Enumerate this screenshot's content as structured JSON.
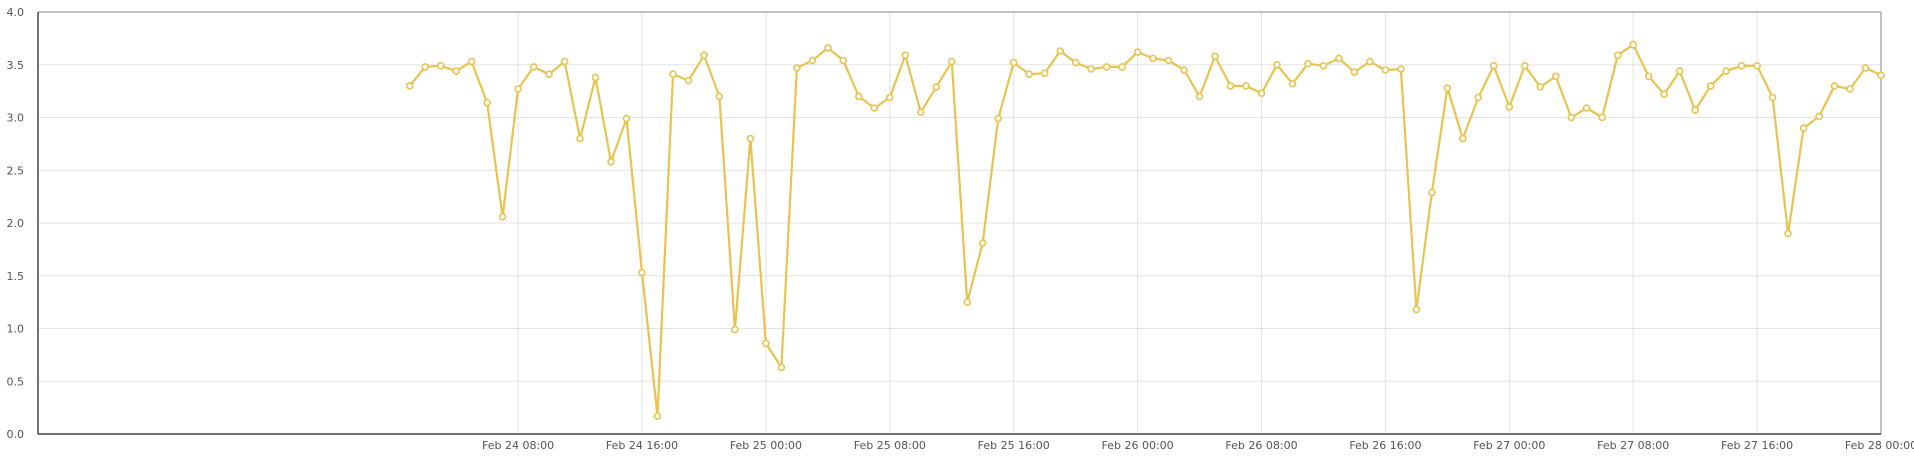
{
  "chart_data": {
    "type": "line",
    "title": "",
    "xlabel": "",
    "ylabel": "",
    "ylim": [
      0,
      4
    ],
    "xlim": [
      "Feb 23 01:00",
      "Feb 28 00:00"
    ],
    "grid": true,
    "legend": "none",
    "y_ticks": [
      "0.0",
      "0.5",
      "1.0",
      "1.5",
      "2.0",
      "2.5",
      "3.0",
      "3.5",
      "4.0"
    ],
    "x_ticks": [
      "Feb 24 08:00",
      "Feb 24 16:00",
      "Feb 25 00:00",
      "Feb 25 08:00",
      "Feb 25 16:00",
      "Feb 26 00:00",
      "Feb 26 08:00",
      "Feb 26 16:00",
      "Feb 27 00:00",
      "Feb 27 08:00",
      "Feb 27 16:00",
      "Feb 28 00:00"
    ],
    "series": [
      {
        "color": "#e8c34f",
        "x": [
          "Feb 24 01:00",
          "Feb 24 02:00",
          "Feb 24 03:00",
          "Feb 24 04:00",
          "Feb 24 05:00",
          "Feb 24 06:00",
          "Feb 24 07:00",
          "Feb 24 08:00",
          "Feb 24 09:00",
          "Feb 24 10:00",
          "Feb 24 11:00",
          "Feb 24 12:00",
          "Feb 24 13:00",
          "Feb 24 14:00",
          "Feb 24 15:00",
          "Feb 24 16:00",
          "Feb 24 17:00",
          "Feb 24 18:00",
          "Feb 24 19:00",
          "Feb 24 20:00",
          "Feb 24 21:00",
          "Feb 24 22:00",
          "Feb 24 23:00",
          "Feb 25 00:00",
          "Feb 25 01:00",
          "Feb 25 02:00",
          "Feb 25 03:00",
          "Feb 25 04:00",
          "Feb 25 05:00",
          "Feb 25 06:00",
          "Feb 25 07:00",
          "Feb 25 08:00",
          "Feb 25 09:00",
          "Feb 25 10:00",
          "Feb 25 11:00",
          "Feb 25 12:00",
          "Feb 25 13:00",
          "Feb 25 14:00",
          "Feb 25 15:00",
          "Feb 25 16:00",
          "Feb 25 17:00",
          "Feb 25 18:00",
          "Feb 25 19:00",
          "Feb 25 20:00",
          "Feb 25 21:00",
          "Feb 25 22:00",
          "Feb 25 23:00",
          "Feb 26 00:00",
          "Feb 26 01:00",
          "Feb 26 02:00",
          "Feb 26 03:00",
          "Feb 26 04:00",
          "Feb 26 05:00",
          "Feb 26 06:00",
          "Feb 26 07:00",
          "Feb 26 08:00",
          "Feb 26 09:00",
          "Feb 26 10:00",
          "Feb 26 11:00",
          "Feb 26 12:00",
          "Feb 26 13:00",
          "Feb 26 14:00",
          "Feb 26 15:00",
          "Feb 26 16:00",
          "Feb 26 17:00",
          "Feb 26 18:00",
          "Feb 26 19:00",
          "Feb 26 20:00",
          "Feb 26 21:00",
          "Feb 26 22:00",
          "Feb 26 23:00",
          "Feb 27 00:00",
          "Feb 27 01:00",
          "Feb 27 02:00",
          "Feb 27 03:00",
          "Feb 27 04:00",
          "Feb 27 05:00",
          "Feb 27 06:00",
          "Feb 27 07:00",
          "Feb 27 08:00",
          "Feb 27 09:00",
          "Feb 27 10:00",
          "Feb 27 11:00",
          "Feb 27 12:00",
          "Feb 27 13:00",
          "Feb 27 14:00",
          "Feb 27 15:00",
          "Feb 27 16:00",
          "Feb 27 17:00",
          "Feb 27 18:00",
          "Feb 27 19:00",
          "Feb 27 20:00",
          "Feb 27 21:00",
          "Feb 27 22:00",
          "Feb 27 23:00",
          "Feb 28 00:00"
        ],
        "values": [
          3.3,
          3.48,
          3.49,
          3.44,
          3.53,
          3.14,
          2.06,
          3.27,
          3.48,
          3.41,
          3.53,
          2.8,
          3.38,
          2.58,
          2.99,
          1.53,
          0.17,
          3.41,
          3.35,
          3.59,
          3.2,
          0.99,
          2.8,
          0.86,
          0.63,
          3.47,
          3.54,
          3.66,
          3.54,
          3.2,
          3.09,
          3.19,
          3.59,
          3.05,
          3.29,
          3.53,
          1.25,
          1.81,
          2.99,
          3.52,
          3.41,
          3.42,
          3.63,
          3.52,
          3.46,
          3.48,
          3.48,
          3.62,
          3.56,
          3.54,
          3.45,
          3.2,
          3.58,
          3.3,
          3.3,
          3.23,
          3.5,
          3.32,
          3.51,
          3.49,
          3.56,
          3.43,
          3.53,
          3.45,
          3.46,
          1.18,
          2.29,
          3.28,
          2.8,
          3.19,
          3.49,
          3.1,
          3.49,
          3.29,
          3.39,
          3.0,
          3.09,
          3.0,
          3.59,
          3.69,
          3.39,
          3.22,
          3.44,
          3.07,
          3.3,
          3.44,
          3.49,
          3.49,
          3.19,
          1.9,
          2.9,
          3.01,
          3.3,
          3.27,
          3.47,
          3.4
        ]
      }
    ]
  }
}
